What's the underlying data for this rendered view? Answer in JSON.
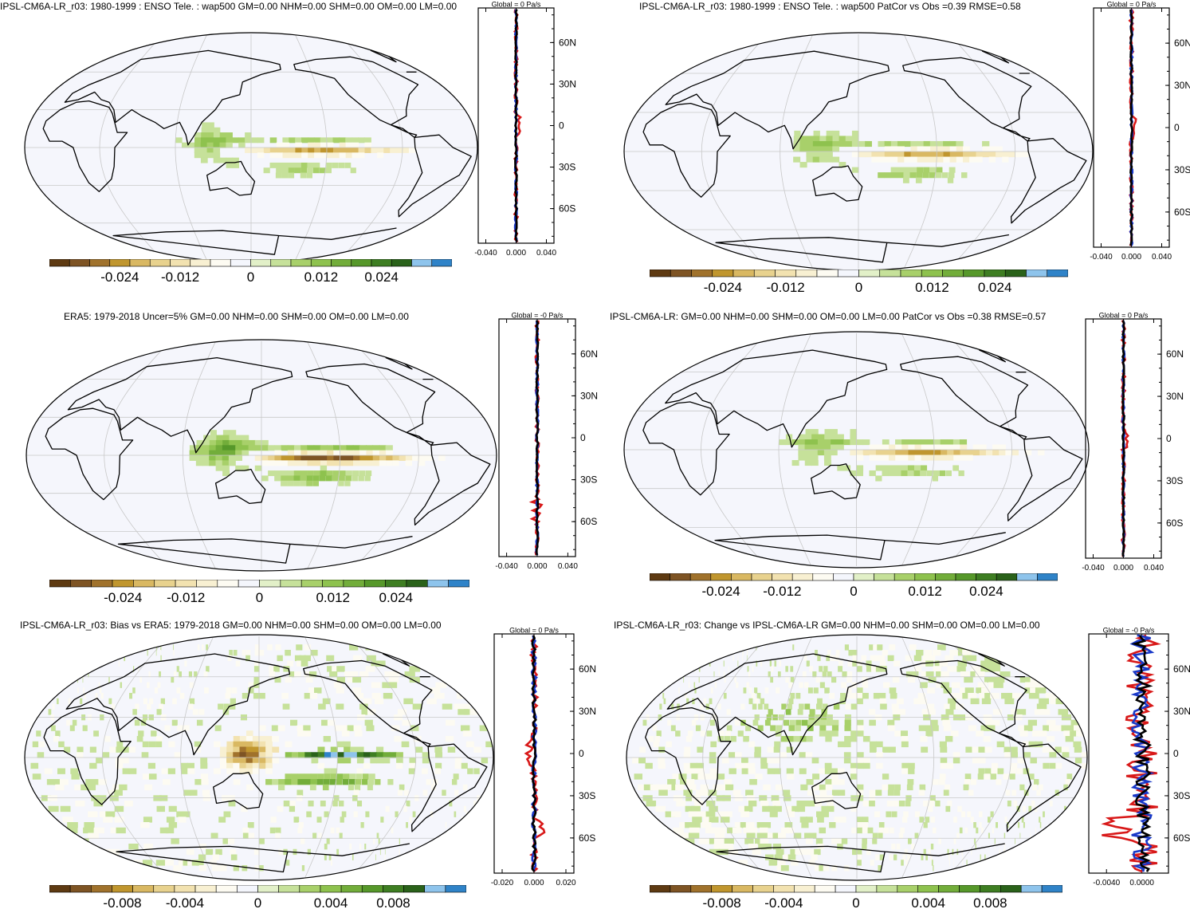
{
  "colors": {
    "scale": [
      "#5e3a12",
      "#7e5424",
      "#a0722c",
      "#c0962e",
      "#d9b862",
      "#e8d28e",
      "#f2e2b0",
      "#f8f0d2",
      "#fdfbf2",
      "#f4f6fc",
      "#e2f0c8",
      "#c6e19a",
      "#a8d06a",
      "#8ec24e",
      "#72ad3a",
      "#56982a",
      "#3e7e22",
      "#2a621a",
      "#8ec4ec",
      "#2f83c8"
    ],
    "ocean": "#f5f6fc",
    "land": "#fdfcf4",
    "grid": "#c8c8c8",
    "model": "#d81818",
    "obs": "#1838c8",
    "zonal": "#000000"
  },
  "chart_data": [
    {
      "id": "p1",
      "type": "heatmap",
      "title": "IPSL-CM6A-LR_r03: 1980-1999 : ENSO Tele. : wap500 GM=0.00 NHM=0.00 SHM=0.00 OM=0.00 LM=0.00",
      "profile_title": "Global = 0 Pa/s",
      "xticks": [
        "-0.040",
        "0.000",
        "0.040"
      ],
      "xlim": [
        -0.05,
        0.05
      ],
      "lat_labels": [
        "60N",
        "30N",
        "0",
        "30S",
        "60S"
      ],
      "colorbar": [
        "-0.024",
        "-0.012",
        "0",
        "0.012",
        "0.024"
      ],
      "style": "model"
    },
    {
      "id": "p2",
      "type": "heatmap",
      "title": "IPSL-CM6A-LR_r03: 1980-1999 : ENSO Tele. : wap500 PatCor vs Obs =0.39 RMSE=0.58",
      "profile_title": "Global = 0 Pa/s",
      "xticks": [
        "-0.040",
        "0.000",
        "0.040"
      ],
      "xlim": [
        -0.05,
        0.05
      ],
      "lat_labels": [
        "60N",
        "30N",
        "0",
        "30S",
        "60S"
      ],
      "colorbar": [
        "-0.024",
        "-0.012",
        "0",
        "0.012",
        "0.024"
      ],
      "style": "model"
    },
    {
      "id": "p3",
      "type": "heatmap",
      "title": "ERA5: 1979-2018 Uncer=5% GM=0.00 NHM=0.00 SHM=0.00 OM=0.00 LM=0.00",
      "profile_title": "Global = -0 Pa/s",
      "xticks": [
        "-0.040",
        "0.000",
        "0.040"
      ],
      "xlim": [
        -0.05,
        0.05
      ],
      "lat_labels": [
        "60N",
        "30N",
        "0",
        "30S",
        "60S"
      ],
      "colorbar": [
        "-0.024",
        "-0.012",
        "0",
        "0.012",
        "0.024"
      ],
      "style": "obs"
    },
    {
      "id": "p4",
      "type": "heatmap",
      "title": "IPSL-CM6A-LR: GM=0.00 NHM=0.00 SHM=0.00 OM=0.00 LM=0.00 PatCor vs Obs =0.38 RMSE=0.57",
      "profile_title": "Global = 0 Pa/s",
      "xticks": [
        "-0.040",
        "0.000",
        "0.040"
      ],
      "xlim": [
        -0.05,
        0.05
      ],
      "lat_labels": [
        "60N",
        "30N",
        "0",
        "30S",
        "60S"
      ],
      "colorbar": [
        "-0.024",
        "-0.012",
        "0",
        "0.012",
        "0.024"
      ],
      "style": "model"
    },
    {
      "id": "p5",
      "type": "heatmap",
      "title": "IPSL-CM6A-LR_r03: Bias vs ERA5: 1979-2018 GM=0.00 NHM=0.00 SHM=0.00 OM=0.00 LM=0.00",
      "profile_title": "Global = 0 Pa/s",
      "xticks": [
        "-0.020",
        "0.000",
        "0.020"
      ],
      "xlim": [
        -0.025,
        0.025
      ],
      "lat_labels": [
        "60N",
        "30N",
        "0",
        "30S",
        "60S"
      ],
      "colorbar": [
        "-0.008",
        "-0.004",
        "0",
        "0.004",
        "0.008"
      ],
      "style": "bias"
    },
    {
      "id": "p6",
      "type": "heatmap",
      "title": "IPSL-CM6A-LR_r03: Change vs IPSL-CM6A-LR GM=0.00 NHM=0.00 SHM=0.00 OM=0.00 LM=0.00",
      "profile_title": "Global = -0 Pa/s",
      "xticks": [
        "-0.0040",
        "0.0000"
      ],
      "xlim": [
        -0.006,
        0.003
      ],
      "lat_labels": [
        "60N",
        "30N",
        "0",
        "30S",
        "60S"
      ],
      "colorbar": [
        "-0.008",
        "-0.004",
        "0",
        "0.004",
        "0.008"
      ],
      "style": "change"
    }
  ]
}
